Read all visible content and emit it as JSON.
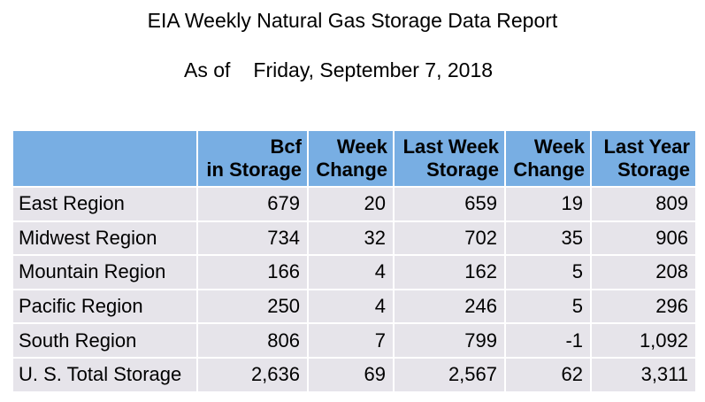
{
  "report": {
    "title": "EIA Weekly Natural Gas Storage Data Report",
    "as_of_label": "As of",
    "date": "Friday, September 7, 2018"
  },
  "table": {
    "headers": [
      {
        "line1": "",
        "line2": ""
      },
      {
        "line1": "Bcf",
        "line2": "in Storage"
      },
      {
        "line1": "Week",
        "line2": "Change"
      },
      {
        "line1": "Last Week",
        "line2": "Storage"
      },
      {
        "line1": "Week",
        "line2": "Change"
      },
      {
        "line1": "Last Year",
        "line2": "Storage"
      }
    ],
    "rows": [
      {
        "region": "East Region",
        "storage": "679",
        "week_change": "20",
        "last_week_storage": "659",
        "last_week_change": "19",
        "last_year_storage": "809"
      },
      {
        "region": "Midwest Region",
        "storage": "734",
        "week_change": "32",
        "last_week_storage": "702",
        "last_week_change": "35",
        "last_year_storage": "906"
      },
      {
        "region": "Mountain Region",
        "storage": "166",
        "week_change": "4",
        "last_week_storage": "162",
        "last_week_change": "5",
        "last_year_storage": "208"
      },
      {
        "region": "Pacific Region",
        "storage": "250",
        "week_change": "4",
        "last_week_storage": "246",
        "last_week_change": "5",
        "last_year_storage": "296"
      },
      {
        "region": "South Region",
        "storage": "806",
        "week_change": "7",
        "last_week_storage": "799",
        "last_week_change": "-1",
        "last_year_storage": "1,092"
      },
      {
        "region": "U. S. Total Storage",
        "storage": "2,636",
        "week_change": "69",
        "last_week_storage": "2,567",
        "last_week_change": "62",
        "last_year_storage": "3,311"
      }
    ]
  },
  "colors": {
    "header_bg": "#78aee3",
    "cell_bg": "#e6e4ea",
    "text": "#000000"
  }
}
